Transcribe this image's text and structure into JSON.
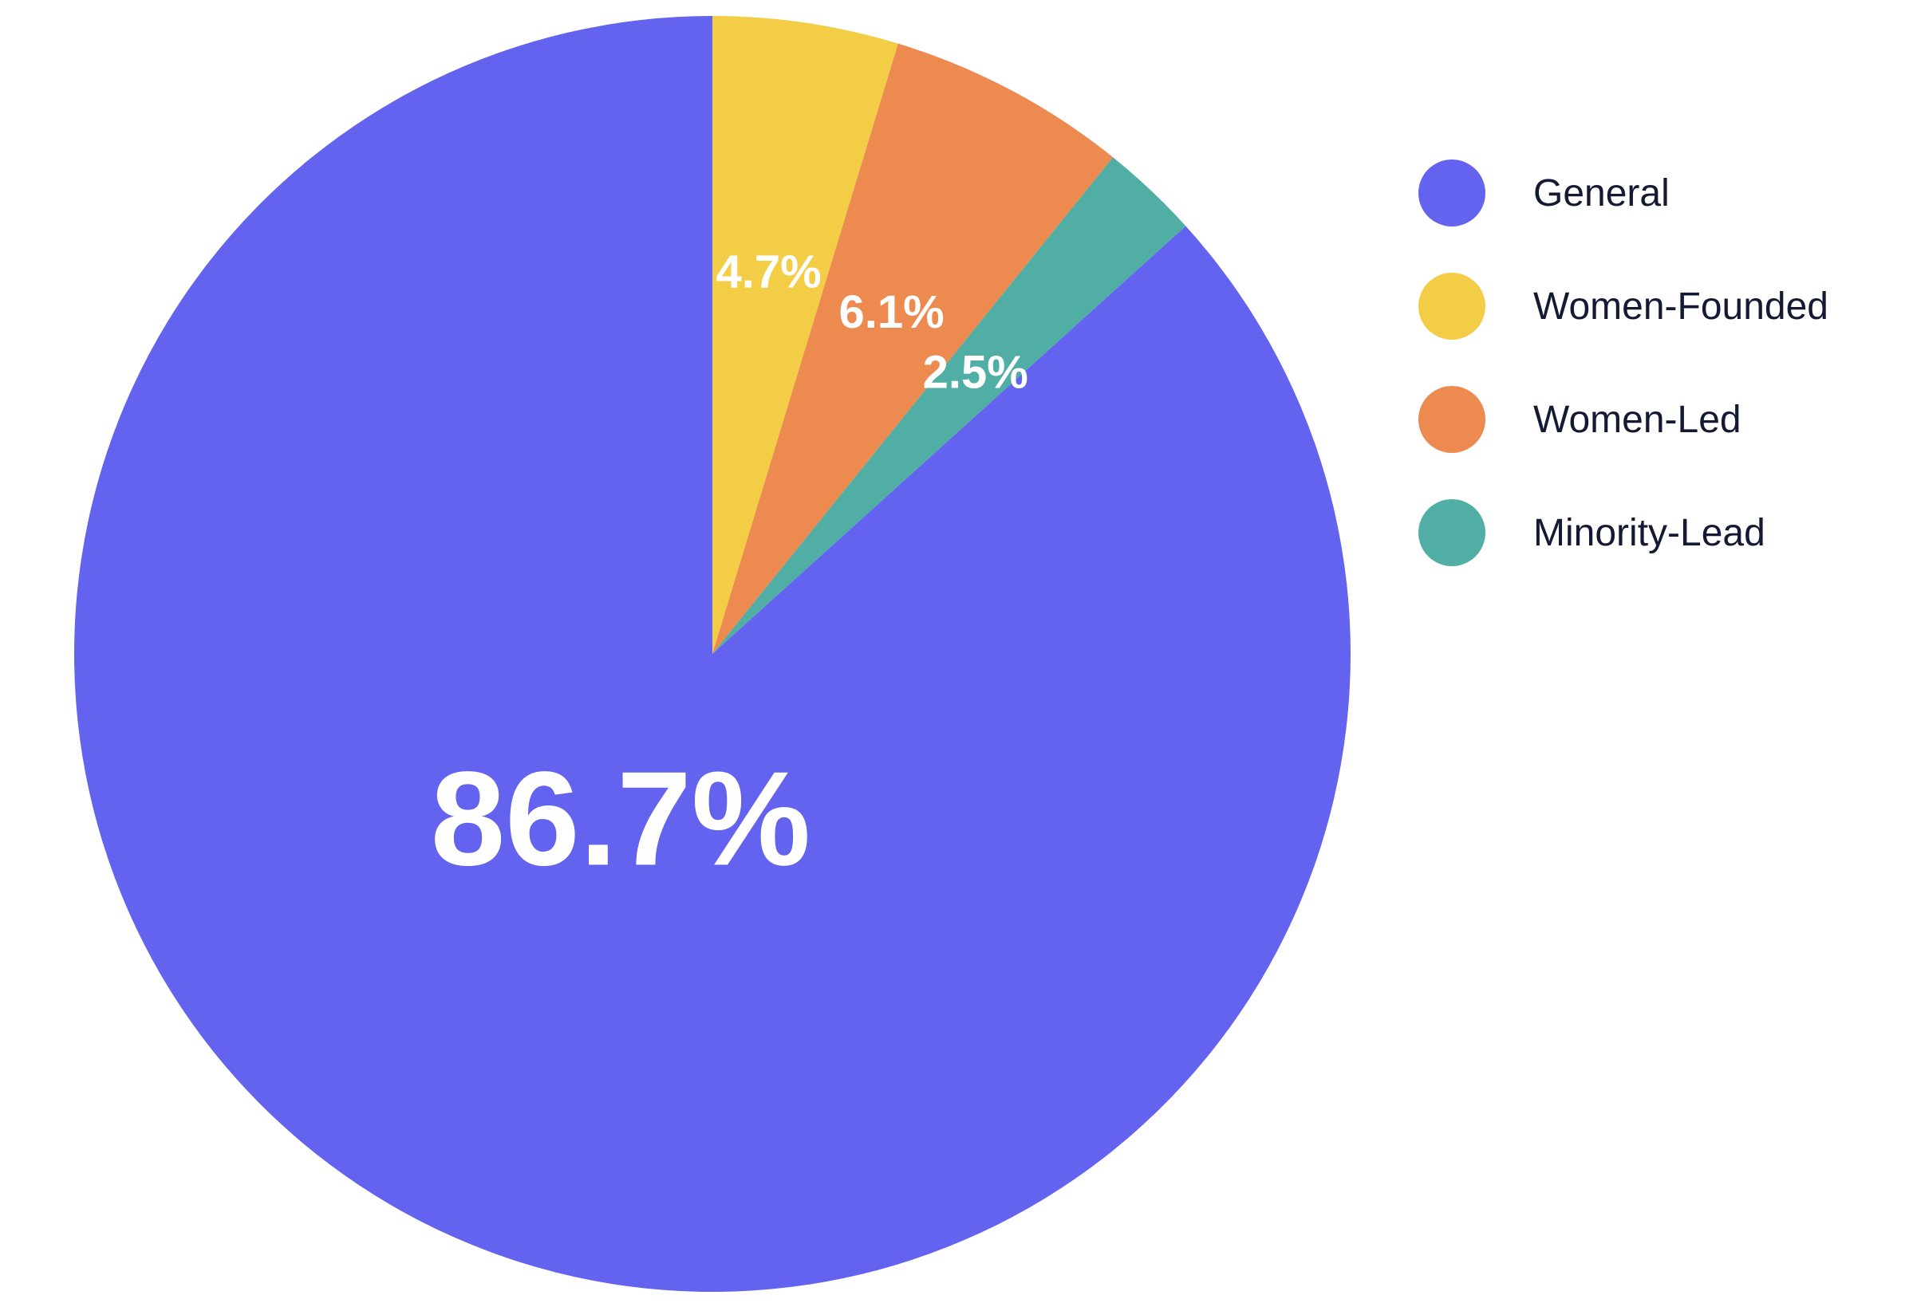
{
  "chart_data": {
    "type": "pie",
    "title": "",
    "slices": [
      {
        "name": "Women-Founded",
        "value": 4.7,
        "label": "4.7%",
        "color": "#F4CD47"
      },
      {
        "name": "Women-Led",
        "value": 6.1,
        "label": "6.1%",
        "color": "#EC8A50"
      },
      {
        "name": "Minority-Lead",
        "value": 2.5,
        "label": "2.5%",
        "color": "#50AEA5"
      },
      {
        "name": "General",
        "value": 86.7,
        "label": "86.7%",
        "color": "#6363EF"
      }
    ],
    "start_angle": "12 o'clock, clockwise",
    "legend": {
      "position": "right",
      "entries": [
        {
          "label": "General",
          "color": "#6363EF"
        },
        {
          "label": "Women-Founded",
          "color": "#F4CD47"
        },
        {
          "label": "Women-Led",
          "color": "#EC8A50"
        },
        {
          "label": "Minority-Lead",
          "color": "#50AEA5"
        }
      ]
    }
  }
}
